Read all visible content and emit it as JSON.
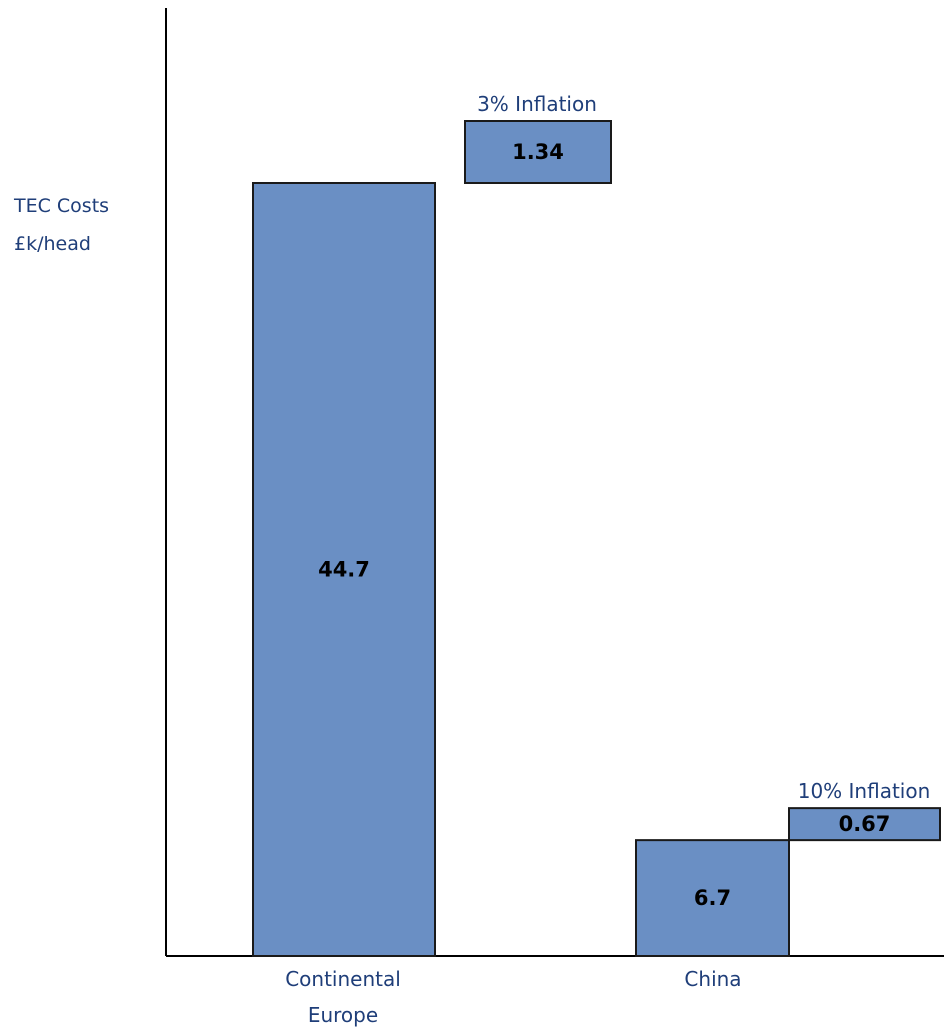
{
  "chart_data": {
    "type": "bar",
    "title": "",
    "ylabel": "TEC Costs\n£k/head",
    "xlabel": "",
    "categories": [
      {
        "label_lines": [
          "Continental",
          "Europe"
        ],
        "value": 44.7,
        "value_label": "44.7",
        "increment": 1.34,
        "increment_label": "1.34",
        "increment_title": "3% Inflation"
      },
      {
        "label_lines": [
          "China"
        ],
        "value": 6.7,
        "value_label": "6.7",
        "increment": 0.67,
        "increment_label": "0.67",
        "increment_title": "10% Inflation"
      }
    ]
  },
  "colors": {
    "bar_fill": "#6a8fc4",
    "bar_stroke": "#1a1a1a",
    "axis": "#000000",
    "label_text": "#1f3e79"
  }
}
